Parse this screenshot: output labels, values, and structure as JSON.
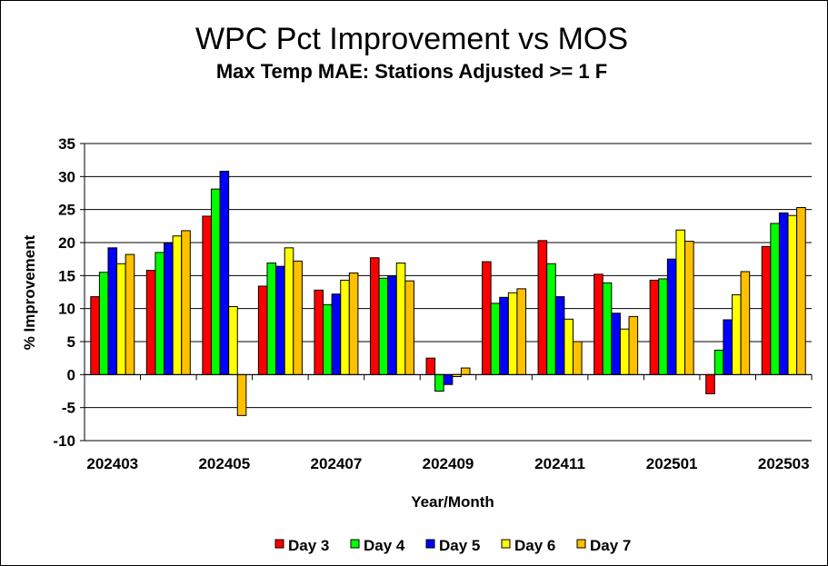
{
  "chart_data": {
    "type": "bar",
    "title": "WPC Pct Improvement vs MOS",
    "subtitle": "Max Temp MAE:  Stations Adjusted >= 1 F",
    "xlabel": "Year/Month",
    "ylabel": "% Improvement",
    "ylim": [
      -10,
      35
    ],
    "yticks": [
      35,
      30,
      25,
      20,
      15,
      10,
      5,
      0,
      -5,
      -10
    ],
    "grid": true,
    "legend_position": "bottom",
    "categories": [
      "202403",
      "202404",
      "202405",
      "202406",
      "202407",
      "202408",
      "202409",
      "202410",
      "202411",
      "202412",
      "202501",
      "202502",
      "202503"
    ],
    "x_tick_labels": [
      "202403",
      "",
      "202405",
      "",
      "202407",
      "",
      "202409",
      "",
      "202411",
      "",
      "202501",
      "",
      "202503"
    ],
    "series": [
      {
        "name": "Day 3",
        "color": "#ff0000",
        "values": [
          11.8,
          15.8,
          24.0,
          13.4,
          12.8,
          17.7,
          2.5,
          17.1,
          20.3,
          15.2,
          14.3,
          -2.9,
          19.4
        ]
      },
      {
        "name": "Day 4",
        "color": "#00ff00",
        "values": [
          15.5,
          18.5,
          28.1,
          16.9,
          10.6,
          14.6,
          -2.5,
          10.8,
          16.8,
          13.9,
          14.5,
          3.7,
          22.9
        ]
      },
      {
        "name": "Day 5",
        "color": "#0000ff",
        "values": [
          19.2,
          19.9,
          30.8,
          16.4,
          12.2,
          14.9,
          -1.5,
          11.7,
          11.8,
          9.3,
          17.5,
          8.3,
          24.5
        ]
      },
      {
        "name": "Day 6",
        "color": "#ffff00",
        "values": [
          16.8,
          21.0,
          10.3,
          19.2,
          14.3,
          16.9,
          -0.3,
          12.4,
          8.4,
          6.9,
          21.9,
          12.1,
          24.1
        ]
      },
      {
        "name": "Day 7",
        "color": "#ffc000",
        "values": [
          18.2,
          21.8,
          -6.2,
          17.2,
          15.4,
          14.2,
          1.0,
          13.0,
          5.0,
          8.8,
          20.2,
          15.6,
          25.3
        ]
      }
    ]
  }
}
